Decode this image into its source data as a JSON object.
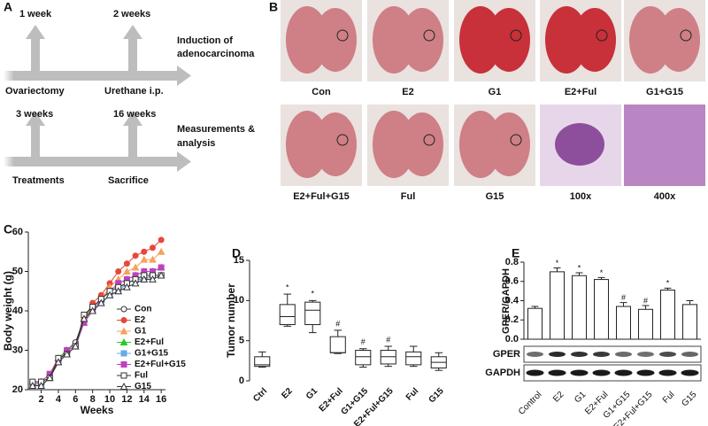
{
  "panel_labels": [
    "A",
    "B",
    "C",
    "D",
    "E"
  ],
  "timeline": {
    "top_ticks": [
      "1 week",
      "2 weeks"
    ],
    "top_events": [
      "Ovariectomy",
      "Urethane i.p."
    ],
    "top_outcome": [
      "Induction of",
      "adenocarcinoma"
    ],
    "bottom_ticks": [
      "3 weeks",
      "16 weeks"
    ],
    "bottom_events": [
      "Treatments",
      "Sacrifice"
    ],
    "bottom_outcome": [
      "Measurements &",
      "analysis"
    ]
  },
  "images": {
    "labels": [
      "Con",
      "E2",
      "G1",
      "E2+Ful",
      "G1+G15",
      "E2+Ful+G15",
      "Ful",
      "G15",
      "100x",
      "400x"
    ]
  },
  "chart_data": [
    {
      "type": "line",
      "x_label": "Weeks",
      "y_label": "Body weight (g)",
      "x": [
        1,
        2,
        3,
        4,
        5,
        6,
        7,
        8,
        9,
        10,
        11,
        12,
        13,
        14,
        15,
        16
      ],
      "xlim": [
        0.5,
        16.5
      ],
      "xticks": [
        2,
        4,
        6,
        8,
        10,
        12,
        14,
        16
      ],
      "ylim": [
        20,
        60
      ],
      "yticks": [
        20,
        30,
        40,
        50,
        60
      ],
      "series": [
        {
          "name": "Con",
          "color": "#333333",
          "marker": "open-circle",
          "values": [
            21,
            21,
            23,
            27,
            30,
            32,
            38,
            41,
            43,
            45,
            46,
            47,
            48,
            48,
            49,
            49
          ]
        },
        {
          "name": "E2",
          "color": "#e8463a",
          "marker": "circle",
          "values": [
            22,
            22,
            24,
            28,
            30,
            31,
            38,
            42,
            44,
            47,
            50,
            52,
            54,
            55,
            56,
            58
          ]
        },
        {
          "name": "G1",
          "color": "#f5a25a",
          "marker": "triangle",
          "values": [
            21,
            21,
            23,
            28,
            30,
            31,
            37,
            41,
            43,
            46,
            48,
            50,
            51,
            53,
            53,
            55
          ]
        },
        {
          "name": "E2+Ful",
          "color": "#22cc22",
          "marker": "triangle",
          "values": [
            21,
            22,
            23,
            28,
            30,
            31,
            38,
            41,
            43,
            45,
            47,
            48,
            49,
            50,
            50,
            51
          ]
        },
        {
          "name": "G1+G15",
          "color": "#6aa9e6",
          "marker": "square",
          "values": [
            21,
            21,
            23,
            27,
            29,
            31,
            37,
            40,
            42,
            44,
            45,
            47,
            48,
            48,
            49,
            49
          ]
        },
        {
          "name": "E2+Ful+G15",
          "color": "#c040c0",
          "marker": "square",
          "values": [
            21,
            22,
            24,
            27,
            30,
            31,
            37,
            40,
            43,
            45,
            47,
            48,
            49,
            50,
            50,
            51
          ]
        },
        {
          "name": "Ful",
          "color": "#333333",
          "marker": "open-square",
          "values": [
            22,
            22,
            23,
            28,
            29,
            31,
            39,
            41,
            43,
            45,
            46,
            47,
            48,
            49,
            49,
            49
          ]
        },
        {
          "name": "G15",
          "color": "#333333",
          "marker": "open-triangle",
          "values": [
            21,
            21,
            23,
            27,
            29,
            31,
            38,
            40,
            42,
            44,
            45,
            46,
            47,
            48,
            48,
            49
          ]
        }
      ]
    },
    {
      "type": "box",
      "y_label": "Tumor number",
      "categories": [
        "Ctrl",
        "E2",
        "G1",
        "E2+Ful",
        "G1+G15",
        "E2+Ful+G15",
        "Ful",
        "G15"
      ],
      "min": [
        1.7,
        6.8,
        6,
        3.4,
        1.7,
        1.8,
        1.8,
        1.3
      ],
      "q1": [
        1.8,
        7,
        7,
        3.5,
        2,
        2.1,
        2,
        1.6
      ],
      "median": [
        2,
        8,
        8.8,
        3.5,
        3,
        3,
        3,
        2.3
      ],
      "q3": [
        3,
        9.5,
        9.8,
        5.5,
        3.8,
        3.8,
        3.6,
        3
      ],
      "max": [
        3.6,
        10.8,
        10,
        6.3,
        4,
        4.3,
        4.3,
        3.5
      ],
      "sig_labels": [
        null,
        "*",
        "*",
        "#",
        "#",
        "#",
        null,
        null
      ],
      "ylim": [
        0,
        15
      ],
      "yticks": [
        0,
        5,
        10,
        15
      ]
    },
    {
      "type": "bar",
      "y_label": "GPER/GAPDH",
      "categories": [
        "Control",
        "E2",
        "G1",
        "E2+Ful",
        "G1+G15",
        "E2+Ful+G15",
        "Ful",
        "G15"
      ],
      "values": [
        0.32,
        0.7,
        0.66,
        0.62,
        0.34,
        0.31,
        0.51,
        0.36
      ],
      "errors": [
        0.02,
        0.04,
        0.03,
        0.02,
        0.04,
        0.04,
        0.02,
        0.04
      ],
      "sig_labels": [
        null,
        "*",
        "*",
        "*",
        "#",
        "#",
        "*",
        null
      ],
      "color": "#ffffff",
      "ylim": [
        0,
        0.8
      ],
      "yticks": [
        {
          "value": 0,
          "label": "0.0"
        },
        {
          "value": 0.2,
          "label": "0.2"
        },
        {
          "value": 0.4,
          "label": "0.4"
        },
        {
          "value": 0.6,
          "label": "0.6"
        },
        {
          "value": 0.8,
          "label": "0.8"
        }
      ],
      "blot_labels": [
        "GPER",
        "GAPDH"
      ]
    }
  ]
}
